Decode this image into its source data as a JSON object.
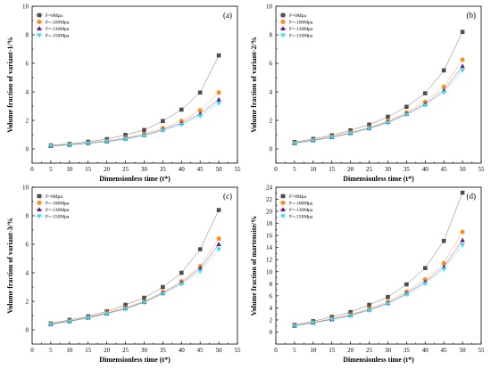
{
  "chart_data": [
    {
      "type": "line",
      "panel_label": "(a)",
      "xlabel": "Dimensionless time (t*)",
      "ylabel": "Volume fraction of variant-1/%",
      "xlim": [
        0,
        55
      ],
      "ylim": [
        -1,
        10
      ],
      "xticks": [
        "0",
        "5",
        "10",
        "15",
        "20",
        "25",
        "30",
        "35",
        "40",
        "45",
        "50",
        "55"
      ],
      "yticks": [
        "0",
        "2",
        "4",
        "6",
        "8",
        "10"
      ],
      "grid": false,
      "legend_position": "top-left",
      "x": [
        5,
        10,
        15,
        20,
        25,
        30,
        35,
        40,
        45,
        50
      ],
      "series": [
        {
          "name": "F=0Mpa",
          "color": "#4d4d4d",
          "marker": "square",
          "values": [
            0.25,
            0.35,
            0.5,
            0.68,
            0.98,
            1.32,
            1.95,
            2.75,
            3.95,
            6.55
          ]
        },
        {
          "name": "F=-100Mpa",
          "color": "#ff8c1a",
          "marker": "circle",
          "values": [
            0.22,
            0.3,
            0.42,
            0.56,
            0.78,
            1.05,
            1.45,
            1.95,
            2.7,
            3.95
          ]
        },
        {
          "name": "F=-130Mpa",
          "color": "#5a1a8c",
          "marker": "triangle-up",
          "values": [
            0.2,
            0.28,
            0.4,
            0.52,
            0.72,
            0.97,
            1.35,
            1.8,
            2.45,
            3.45
          ]
        },
        {
          "name": "F=-150Mpa",
          "color": "#33ddee",
          "marker": "triangle-down",
          "values": [
            0.2,
            0.27,
            0.38,
            0.5,
            0.68,
            0.92,
            1.28,
            1.7,
            2.3,
            3.2
          ]
        }
      ]
    },
    {
      "type": "line",
      "panel_label": "(b)",
      "xlabel": "Dimensionless time (t*)",
      "ylabel": "Volume fraction of variant-2/%",
      "xlim": [
        0,
        55
      ],
      "ylim": [
        -1,
        10
      ],
      "xticks": [
        "0",
        "5",
        "10",
        "15",
        "20",
        "25",
        "30",
        "35",
        "40",
        "45",
        "50",
        "55"
      ],
      "yticks": [
        "0",
        "2",
        "4",
        "6",
        "8",
        "10"
      ],
      "grid": false,
      "legend_position": "top-left",
      "x": [
        5,
        10,
        15,
        20,
        25,
        30,
        35,
        40,
        45,
        50
      ],
      "series": [
        {
          "name": "F=0Mpa",
          "color": "#4d4d4d",
          "marker": "square",
          "values": [
            0.48,
            0.7,
            0.95,
            1.3,
            1.7,
            2.25,
            2.95,
            3.9,
            5.5,
            8.2
          ]
        },
        {
          "name": "F=-100Mpa",
          "color": "#ff8c1a",
          "marker": "circle",
          "values": [
            0.42,
            0.62,
            0.85,
            1.15,
            1.5,
            1.95,
            2.55,
            3.3,
            4.35,
            6.25
          ]
        },
        {
          "name": "F=-130Mpa",
          "color": "#5a1a8c",
          "marker": "triangle-up",
          "values": [
            0.4,
            0.6,
            0.82,
            1.1,
            1.45,
            1.88,
            2.45,
            3.15,
            4.1,
            5.8
          ]
        },
        {
          "name": "F=-150Mpa",
          "color": "#33ddee",
          "marker": "triangle-down",
          "values": [
            0.38,
            0.58,
            0.8,
            1.08,
            1.42,
            1.82,
            2.38,
            3.05,
            3.95,
            5.5
          ]
        }
      ]
    },
    {
      "type": "line",
      "panel_label": "(c)",
      "xlabel": "Dimensionless time (t*)",
      "ylabel": "Volume fraction of variant-3/%",
      "xlim": [
        0,
        55
      ],
      "ylim": [
        -1,
        10
      ],
      "xticks": [
        "0",
        "5",
        "10",
        "15",
        "20",
        "25",
        "30",
        "35",
        "40",
        "45",
        "50",
        "55"
      ],
      "yticks": [
        "0",
        "2",
        "4",
        "6",
        "8",
        "10"
      ],
      "grid": false,
      "legend_position": "top-left",
      "x": [
        5,
        10,
        15,
        20,
        25,
        30,
        35,
        40,
        45,
        50
      ],
      "series": [
        {
          "name": "F=0Mpa",
          "color": "#4d4d4d",
          "marker": "square",
          "values": [
            0.45,
            0.7,
            0.95,
            1.3,
            1.75,
            2.25,
            3.0,
            4.0,
            5.65,
            8.4
          ]
        },
        {
          "name": "F=-100Mpa",
          "color": "#ff8c1a",
          "marker": "circle",
          "values": [
            0.42,
            0.62,
            0.88,
            1.2,
            1.55,
            2.0,
            2.65,
            3.4,
            4.45,
            6.4
          ]
        },
        {
          "name": "F=-130Mpa",
          "color": "#5a1a8c",
          "marker": "triangle-up",
          "values": [
            0.4,
            0.6,
            0.85,
            1.15,
            1.5,
            1.95,
            2.58,
            3.3,
            4.3,
            6.0
          ]
        },
        {
          "name": "F=-150Mpa",
          "color": "#33ddee",
          "marker": "triangle-down",
          "values": [
            0.38,
            0.58,
            0.82,
            1.12,
            1.45,
            1.9,
            2.5,
            3.2,
            4.1,
            5.65
          ]
        }
      ]
    },
    {
      "type": "line",
      "panel_label": "(d)",
      "xlabel": "Dimensionless time (t*)",
      "ylabel": "Volume fraction of martensite/%",
      "xlim": [
        0,
        55
      ],
      "ylim": [
        -2,
        24
      ],
      "xticks": [
        "0",
        "5",
        "10",
        "15",
        "20",
        "25",
        "30",
        "35",
        "40",
        "45",
        "50",
        "55"
      ],
      "yticks": [
        "0",
        "2",
        "4",
        "6",
        "8",
        "10",
        "12",
        "14",
        "16",
        "18",
        "20",
        "22",
        "24"
      ],
      "grid": false,
      "legend_position": "top-left",
      "x": [
        5,
        10,
        15,
        20,
        25,
        30,
        35,
        40,
        45,
        50
      ],
      "series": [
        {
          "name": "F=0Mpa",
          "color": "#4d4d4d",
          "marker": "square",
          "values": [
            1.2,
            1.8,
            2.5,
            3.3,
            4.5,
            5.8,
            7.9,
            10.6,
            15.1,
            23.1
          ]
        },
        {
          "name": "F=-100Mpa",
          "color": "#ff8c1a",
          "marker": "circle",
          "values": [
            1.1,
            1.6,
            2.2,
            2.9,
            3.9,
            5.0,
            6.7,
            8.7,
            11.4,
            16.6
          ]
        },
        {
          "name": "F=-130Mpa",
          "color": "#5a1a8c",
          "marker": "triangle-up",
          "values": [
            1.0,
            1.55,
            2.1,
            2.8,
            3.7,
            4.8,
            6.4,
            8.3,
            10.8,
            15.2
          ]
        },
        {
          "name": "F=-150Mpa",
          "color": "#33ddee",
          "marker": "triangle-down",
          "values": [
            1.0,
            1.5,
            2.05,
            2.7,
            3.6,
            4.65,
            6.2,
            8.0,
            10.4,
            14.4
          ]
        }
      ]
    }
  ]
}
